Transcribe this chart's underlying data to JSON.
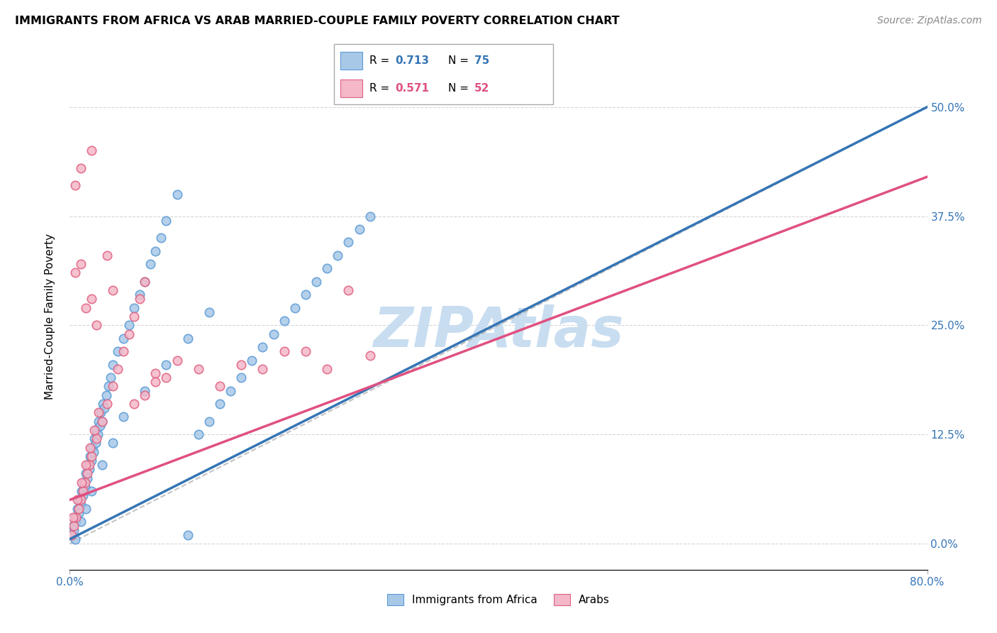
{
  "title": "IMMIGRANTS FROM AFRICA VS ARAB MARRIED-COUPLE FAMILY POVERTY CORRELATION CHART",
  "source": "Source: ZipAtlas.com",
  "ylabel": "Married-Couple Family Poverty",
  "ytick_vals": [
    0.0,
    12.5,
    25.0,
    37.5,
    50.0
  ],
  "xlim": [
    0.0,
    80.0
  ],
  "ylim": [
    -3.0,
    55.0
  ],
  "legend1_R": "0.713",
  "legend1_N": "75",
  "legend2_R": "0.571",
  "legend2_N": "52",
  "blue_color": "#a8c8e8",
  "blue_edge_color": "#5b9bd5",
  "pink_color": "#f4b8c8",
  "pink_edge_color": "#e06080",
  "blue_line_color": "#3575b5",
  "pink_line_color": "#e05080",
  "dash_line_color": "#aaaaaa",
  "watermark_color": "#c8ddf0",
  "blue_line_x0": 0.0,
  "blue_line_y0": 0.5,
  "blue_line_x1": 80.0,
  "blue_line_y1": 50.0,
  "pink_line_x0": 0.0,
  "pink_line_y0": 5.0,
  "pink_line_x1": 80.0,
  "pink_line_y1": 42.0,
  "dash_line_x0": 0.0,
  "dash_line_y0": 0.0,
  "dash_line_x1": 80.0,
  "dash_line_y1": 50.0,
  "blue_x": [
    0.2,
    0.3,
    0.4,
    0.5,
    0.6,
    0.7,
    0.8,
    0.9,
    1.0,
    1.1,
    1.2,
    1.3,
    1.4,
    1.5,
    1.6,
    1.7,
    1.8,
    1.9,
    2.0,
    2.1,
    2.2,
    2.3,
    2.4,
    2.5,
    2.6,
    2.7,
    2.8,
    2.9,
    3.0,
    3.1,
    3.2,
    3.4,
    3.6,
    3.8,
    4.0,
    4.5,
    5.0,
    5.5,
    6.0,
    6.5,
    7.0,
    7.5,
    8.0,
    8.5,
    9.0,
    10.0,
    11.0,
    12.0,
    13.0,
    14.0,
    15.0,
    16.0,
    17.0,
    18.0,
    19.0,
    20.0,
    21.0,
    22.0,
    23.0,
    24.0,
    25.0,
    26.0,
    27.0,
    28.0,
    0.5,
    1.0,
    1.5,
    2.0,
    3.0,
    4.0,
    5.0,
    7.0,
    9.0,
    11.0,
    13.0
  ],
  "blue_y": [
    1.0,
    2.0,
    1.5,
    3.0,
    2.5,
    4.0,
    3.5,
    5.0,
    4.5,
    6.0,
    5.5,
    7.0,
    6.5,
    8.0,
    7.5,
    9.0,
    8.5,
    10.0,
    9.5,
    11.0,
    10.5,
    12.0,
    11.5,
    13.0,
    12.5,
    14.0,
    13.5,
    15.0,
    14.0,
    16.0,
    15.5,
    17.0,
    18.0,
    19.0,
    20.5,
    22.0,
    23.5,
    25.0,
    27.0,
    28.5,
    30.0,
    32.0,
    33.5,
    35.0,
    37.0,
    40.0,
    1.0,
    12.5,
    14.0,
    16.0,
    17.5,
    19.0,
    21.0,
    22.5,
    24.0,
    25.5,
    27.0,
    28.5,
    30.0,
    31.5,
    33.0,
    34.5,
    36.0,
    37.5,
    0.5,
    2.5,
    4.0,
    6.0,
    9.0,
    11.5,
    14.5,
    17.5,
    20.5,
    23.5,
    26.5
  ],
  "pink_x": [
    0.2,
    0.4,
    0.6,
    0.8,
    1.0,
    1.2,
    1.4,
    1.6,
    1.8,
    2.0,
    2.5,
    3.0,
    3.5,
    4.0,
    4.5,
    5.0,
    5.5,
    6.0,
    6.5,
    7.0,
    3.5,
    4.0,
    0.5,
    1.0,
    1.5,
    2.0,
    2.5,
    0.3,
    0.7,
    1.1,
    1.5,
    1.9,
    2.3,
    2.7,
    18.0,
    20.0,
    22.0,
    24.0,
    26.0,
    8.0,
    10.0,
    12.0,
    14.0,
    16.0,
    6.0,
    7.0,
    8.0,
    9.0,
    28.0,
    0.5,
    1.0,
    2.0
  ],
  "pink_y": [
    1.0,
    2.0,
    3.0,
    4.0,
    5.0,
    6.0,
    7.0,
    8.0,
    9.0,
    10.0,
    12.0,
    14.0,
    16.0,
    18.0,
    20.0,
    22.0,
    24.0,
    26.0,
    28.0,
    30.0,
    33.0,
    29.0,
    31.0,
    32.0,
    27.0,
    28.0,
    25.0,
    3.0,
    5.0,
    7.0,
    9.0,
    11.0,
    13.0,
    15.0,
    20.0,
    22.0,
    22.0,
    20.0,
    29.0,
    19.5,
    21.0,
    20.0,
    18.0,
    20.5,
    16.0,
    17.0,
    18.5,
    19.0,
    21.5,
    41.0,
    43.0,
    45.0
  ]
}
